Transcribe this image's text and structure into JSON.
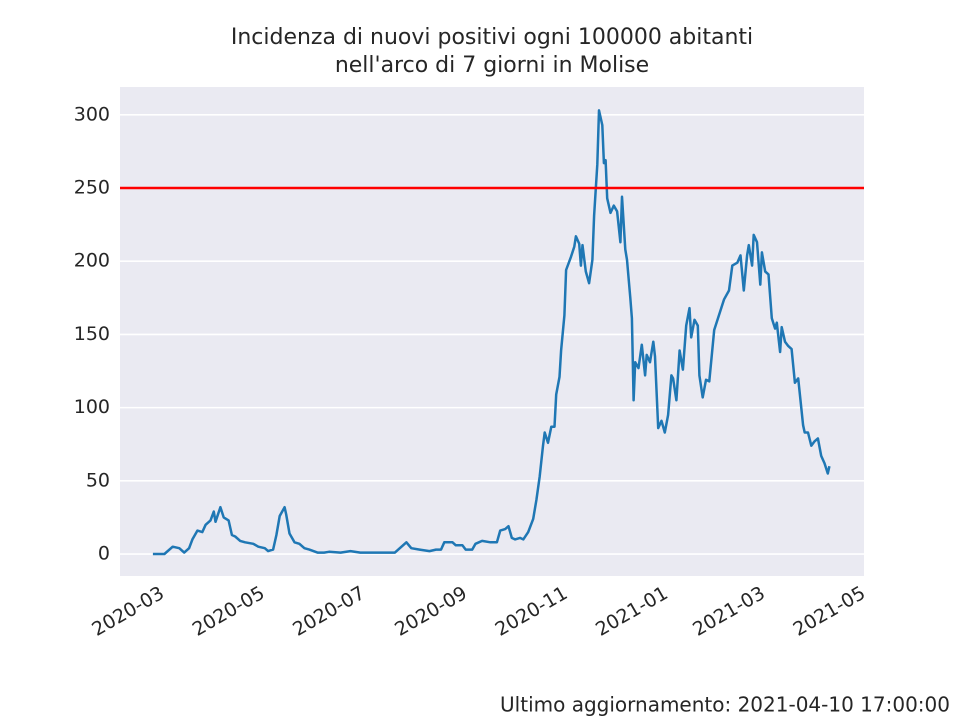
{
  "chart_data": {
    "type": "line",
    "title": [
      "Incidenza di nuovi positivi ogni 100000 abitanti",
      "nell'arco di 7 giorni in Molise"
    ],
    "footnote": "Ultimo aggiornamento: 2021-04-10 17:00:00",
    "x": [
      "2020-02-24",
      "2020-03-02",
      "2020-03-07",
      "2020-03-11",
      "2020-03-14",
      "2020-03-17",
      "2020-03-19",
      "2020-03-22",
      "2020-03-25",
      "2020-03-27",
      "2020-03-30",
      "2020-04-01",
      "2020-04-02",
      "2020-04-05",
      "2020-04-07",
      "2020-04-10",
      "2020-04-12",
      "2020-04-14",
      "2020-04-17",
      "2020-04-20",
      "2020-04-25",
      "2020-04-28",
      "2020-05-02",
      "2020-05-04",
      "2020-05-07",
      "2020-05-09",
      "2020-05-11",
      "2020-05-14",
      "2020-05-15",
      "2020-05-17",
      "2020-05-20",
      "2020-05-23",
      "2020-05-26",
      "2020-05-29",
      "2020-06-03",
      "2020-06-07",
      "2020-06-10",
      "2020-06-17",
      "2020-06-23",
      "2020-06-29",
      "2020-07-08",
      "2020-07-14",
      "2020-07-20",
      "2020-07-23",
      "2020-07-27",
      "2020-07-30",
      "2020-08-04",
      "2020-08-10",
      "2020-08-14",
      "2020-08-17",
      "2020-08-19",
      "2020-08-24",
      "2020-08-26",
      "2020-08-30",
      "2020-09-01",
      "2020-09-05",
      "2020-09-07",
      "2020-09-11",
      "2020-09-16",
      "2020-09-20",
      "2020-09-22",
      "2020-09-25",
      "2020-09-27",
      "2020-09-29",
      "2020-10-01",
      "2020-10-04",
      "2020-10-06",
      "2020-10-09",
      "2020-10-12",
      "2020-10-14",
      "2020-10-16",
      "2020-10-18",
      "2020-10-19",
      "2020-10-21",
      "2020-10-23",
      "2020-10-25",
      "2020-10-26",
      "2020-10-28",
      "2020-10-29",
      "2020-10-31",
      "2020-11-01",
      "2020-11-04",
      "2020-11-06",
      "2020-11-07",
      "2020-11-09",
      "2020-11-10",
      "2020-11-11",
      "2020-11-13",
      "2020-11-15",
      "2020-11-17",
      "2020-11-18",
      "2020-11-20",
      "2020-11-21",
      "2020-11-23",
      "2020-11-24",
      "2020-11-25",
      "2020-11-26",
      "2020-11-28",
      "2020-11-30",
      "2020-12-02",
      "2020-12-04",
      "2020-12-05",
      "2020-12-07",
      "2020-12-08",
      "2020-12-10",
      "2020-12-11",
      "2020-12-12",
      "2020-12-13",
      "2020-12-15",
      "2020-12-17",
      "2020-12-19",
      "2020-12-20",
      "2020-12-22",
      "2020-12-24",
      "2020-12-25",
      "2020-12-27",
      "2020-12-29",
      "2020-12-31",
      "2021-01-02",
      "2021-01-04",
      "2021-01-05",
      "2021-01-07",
      "2021-01-09",
      "2021-01-11",
      "2021-01-13",
      "2021-01-15",
      "2021-01-16",
      "2021-01-18",
      "2021-01-20",
      "2021-01-21",
      "2021-01-23",
      "2021-01-25",
      "2021-01-27",
      "2021-01-30",
      "2021-02-01",
      "2021-02-03",
      "2021-02-05",
      "2021-02-08",
      "2021-02-10",
      "2021-02-13",
      "2021-02-15",
      "2021-02-17",
      "2021-02-19",
      "2021-02-20",
      "2021-02-22",
      "2021-02-23",
      "2021-02-25",
      "2021-02-27",
      "2021-02-28",
      "2021-03-02",
      "2021-03-04",
      "2021-03-06",
      "2021-03-08",
      "2021-03-09",
      "2021-03-11",
      "2021-03-12",
      "2021-03-14",
      "2021-03-16",
      "2021-03-18",
      "2021-03-20",
      "2021-03-22",
      "2021-03-25",
      "2021-03-26",
      "2021-03-28",
      "2021-03-30",
      "2021-04-01",
      "2021-04-03",
      "2021-04-05",
      "2021-04-07",
      "2021-04-09",
      "2021-04-10"
    ],
    "series": [
      {
        "color": "#1f77b4",
        "values": [
          0,
          0,
          5,
          4,
          1,
          4,
          10,
          16,
          15,
          20,
          23,
          29,
          22,
          32,
          25,
          23,
          13,
          12,
          9,
          8,
          7,
          5,
          4,
          2,
          3,
          13,
          26,
          32,
          27,
          14,
          8,
          7,
          4,
          3,
          1,
          1,
          1.5,
          1,
          2,
          1,
          1,
          1,
          1,
          4,
          8,
          4,
          3,
          2,
          3,
          3,
          8,
          8,
          6,
          6,
          3,
          3,
          7,
          9,
          8,
          8,
          16,
          17,
          19,
          11,
          10,
          11,
          10,
          15,
          24,
          37,
          53,
          74,
          83,
          76,
          87,
          87,
          109,
          121,
          139,
          163,
          194,
          203,
          210,
          217,
          212,
          197,
          211,
          193,
          185,
          201,
          231,
          266,
          303,
          293,
          267,
          269,
          243,
          233,
          238,
          234,
          213,
          244,
          208,
          201,
          175,
          161,
          105,
          131,
          127,
          143,
          122,
          136,
          131,
          145,
          135,
          86,
          91,
          83,
          95,
          122,
          120,
          105,
          139,
          126,
          156,
          168,
          148,
          160,
          156,
          122,
          107,
          119,
          118,
          153,
          160,
          167,
          174,
          180,
          197,
          199,
          204,
          180,
          204,
          211,
          197,
          218,
          213,
          184,
          206,
          193,
          191,
          161,
          154,
          158,
          138,
          155,
          145,
          142,
          140,
          117,
          120,
          88,
          83,
          83,
          74,
          77,
          79,
          67,
          62,
          55,
          60
        ]
      }
    ],
    "hline": {
      "value": 250,
      "color": "#ff0000"
    },
    "xlim": [
      "2020-02-04",
      "2021-05-01"
    ],
    "xticks": [
      "2020-03",
      "2020-05",
      "2020-07",
      "2020-09",
      "2020-11",
      "2021-01",
      "2021-03",
      "2021-05"
    ],
    "ylim": [
      -15,
      319
    ],
    "yticks": [
      0,
      50,
      100,
      150,
      200,
      250,
      300
    ],
    "grid": true
  }
}
